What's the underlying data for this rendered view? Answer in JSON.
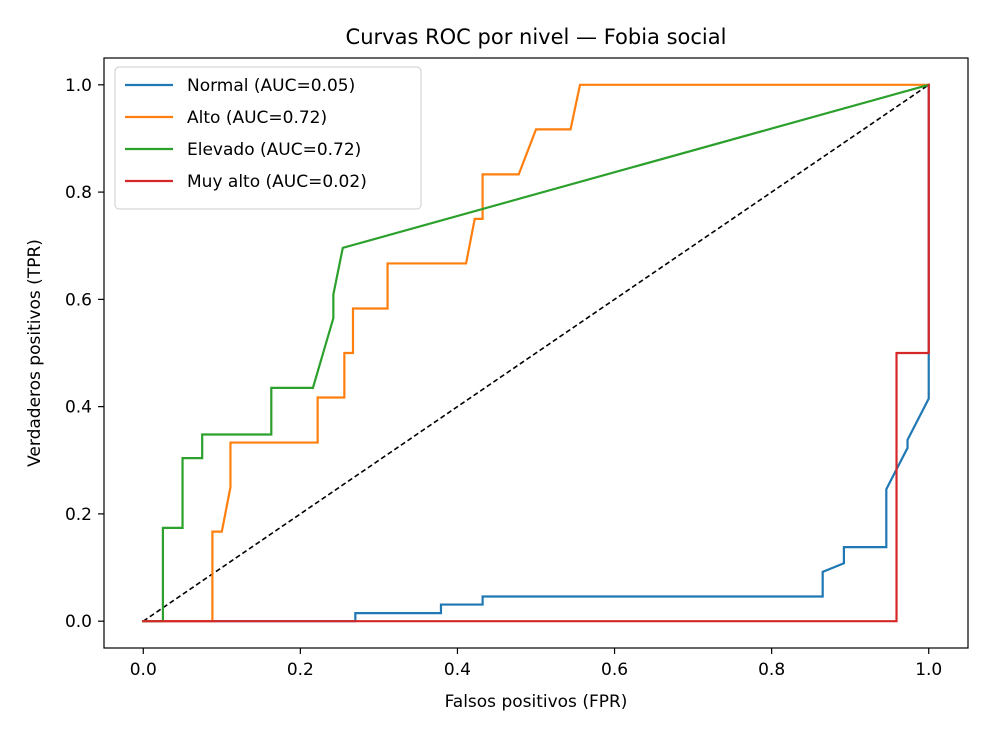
{
  "chart_data": {
    "type": "line",
    "title": "Curvas ROC por nivel — Fobia social",
    "xlabel": "Falsos positivos (FPR)",
    "ylabel": "Verdaderos positivos (TPR)",
    "xlim": [
      -0.05,
      1.05
    ],
    "ylim": [
      -0.05,
      1.05
    ],
    "xticks": [
      "0.0",
      "0.2",
      "0.4",
      "0.6",
      "0.8",
      "1.0"
    ],
    "yticks": [
      "0.0",
      "0.2",
      "0.4",
      "0.6",
      "0.8",
      "1.0"
    ],
    "grid": false,
    "legend_position": "top-left",
    "reference_line": {
      "x": [
        0,
        1
      ],
      "y": [
        0,
        1
      ],
      "style": "dashed",
      "color": "#000000"
    },
    "series": [
      {
        "name": "Normal (AUC=0.05)",
        "color": "#1f77b4",
        "x": [
          0,
          0.27,
          0.27,
          0.379,
          0.379,
          0.432,
          0.432,
          0.865,
          0.865,
          0.892,
          0.892,
          0.946,
          0.946,
          0.973,
          0.973,
          1.0,
          1.0
        ],
        "y": [
          0,
          0,
          0.015,
          0.015,
          0.031,
          0.031,
          0.046,
          0.046,
          0.092,
          0.108,
          0.138,
          0.138,
          0.246,
          0.323,
          0.338,
          0.415,
          1.0
        ]
      },
      {
        "name": "Alto (AUC=0.72)",
        "color": "#ff7f0e",
        "x": [
          0,
          0.088,
          0.088,
          0.1,
          0.111,
          0.111,
          0.222,
          0.222,
          0.256,
          0.256,
          0.267,
          0.267,
          0.311,
          0.311,
          0.411,
          0.422,
          0.432,
          0.432,
          0.478,
          0.5,
          0.544,
          0.556,
          0.556,
          1.0
        ],
        "y": [
          0,
          0,
          0.167,
          0.167,
          0.25,
          0.333,
          0.333,
          0.417,
          0.417,
          0.5,
          0.5,
          0.583,
          0.583,
          0.667,
          0.667,
          0.75,
          0.75,
          0.833,
          0.833,
          0.917,
          0.917,
          1.0,
          1.0,
          1.0
        ]
      },
      {
        "name": "Elevado (AUC=0.72)",
        "color": "#2ca02c",
        "x": [
          0,
          0.025,
          0.025,
          0.05,
          0.05,
          0.075,
          0.075,
          0.163,
          0.163,
          0.216,
          0.242,
          0.242,
          0.254,
          1.0
        ],
        "y": [
          0,
          0,
          0.174,
          0.174,
          0.304,
          0.304,
          0.348,
          0.348,
          0.435,
          0.435,
          0.565,
          0.609,
          0.696,
          1.0
        ]
      },
      {
        "name": "Muy alto (AUC=0.02)",
        "color": "#d62728",
        "x": [
          0,
          0.959,
          0.959,
          1.0,
          1.0
        ],
        "y": [
          0,
          0,
          0.5,
          0.5,
          1.0
        ]
      }
    ]
  }
}
